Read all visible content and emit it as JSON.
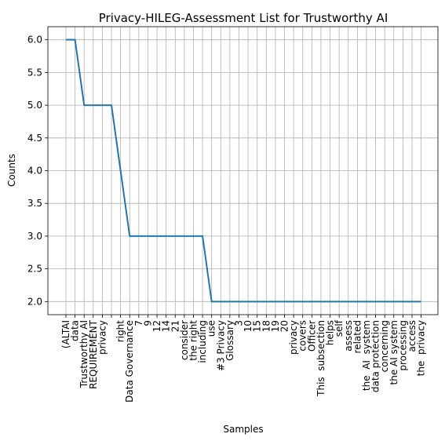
{
  "chart_data": {
    "type": "line",
    "title": "Privacy-HILEG-Assessment List for Trustworthy AI",
    "xlabel": "Samples",
    "ylabel": "Counts",
    "ylim": [
      1.8,
      6.2
    ],
    "yticks": [
      "2.0",
      "2.5",
      "3.0",
      "3.5",
      "4.0",
      "4.5",
      "5.0",
      "5.5",
      "6.0"
    ],
    "grid": true,
    "line_color": "#1f77b4",
    "categories": [
      "(ALTAI",
      "data",
      "Trustworthy AI",
      "REQUIREMENT",
      "privacy",
      "",
      "right",
      "Data Governance",
      "7",
      "9",
      "12",
      "14",
      "21",
      "consider",
      "the right",
      "including",
      "use",
      "#3 Privacy",
      "Glossary",
      "3",
      "10",
      "15",
      "18",
      "19",
      "20",
      "privacy",
      "covers",
      "Officer",
      "This  subsection",
      "helps",
      "self",
      "assess",
      "related",
      "the  AI  system",
      "data protection",
      "concerning",
      "the AI system",
      "processing",
      "access",
      "the  privacy"
    ],
    "values": [
      6,
      6,
      5,
      5,
      5,
      5,
      4,
      3,
      3,
      3,
      3,
      3,
      3,
      3,
      3,
      3,
      2,
      2,
      2,
      2,
      2,
      2,
      2,
      2,
      2,
      2,
      2,
      2,
      2,
      2,
      2,
      2,
      2,
      2,
      2,
      2,
      2,
      2,
      2,
      2
    ]
  }
}
